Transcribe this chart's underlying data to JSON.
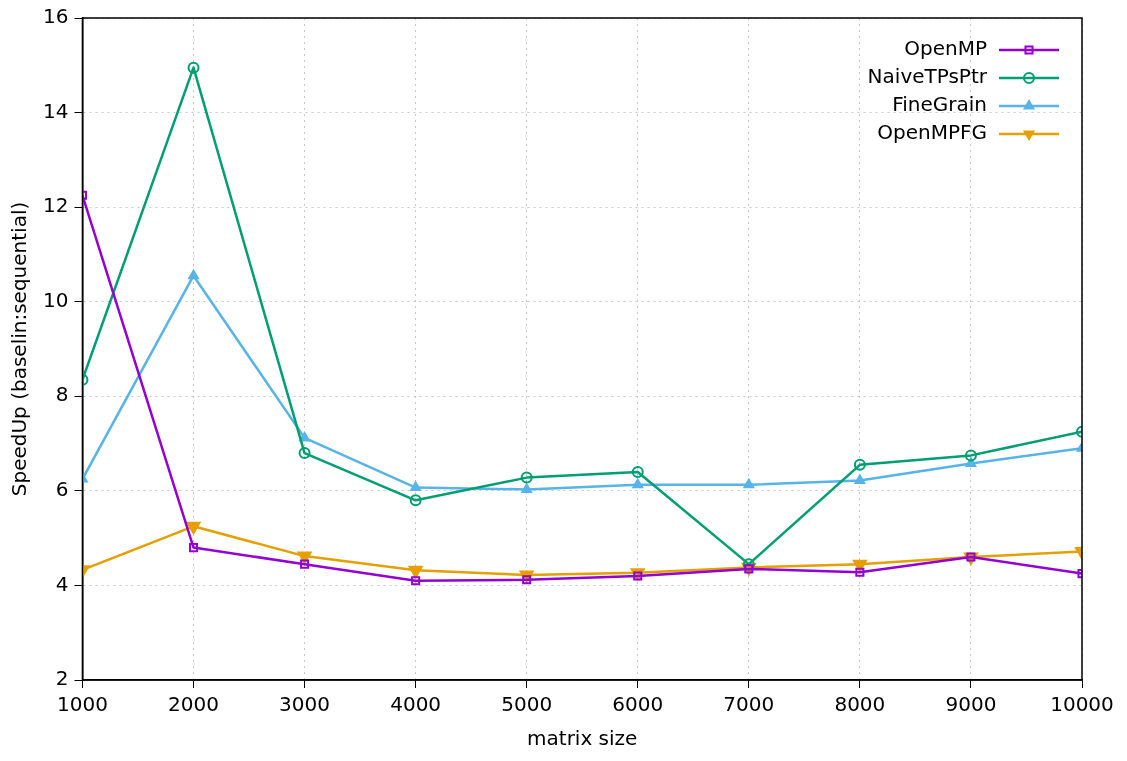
{
  "chart_data": {
    "type": "line",
    "xlabel": "matrix size",
    "ylabel": "SpeedUp (baselin:sequential)",
    "x": [
      1000,
      2000,
      3000,
      4000,
      5000,
      6000,
      7000,
      8000,
      9000,
      10000
    ],
    "series": [
      {
        "name": "OpenMP",
        "color": "#9400d3",
        "marker": "square",
        "values": [
          12.25,
          4.8,
          4.45,
          4.1,
          4.12,
          4.2,
          4.35,
          4.28,
          4.6,
          4.25
        ]
      },
      {
        "name": "NaiveTPsPtr",
        "color": "#009e73",
        "marker": "circle",
        "values": [
          8.35,
          14.95,
          6.8,
          5.8,
          6.28,
          6.4,
          4.45,
          6.55,
          6.75,
          7.25
        ]
      },
      {
        "name": "FineGrain",
        "color": "#56b4e9",
        "marker": "triangle",
        "values": [
          6.25,
          10.55,
          7.12,
          6.07,
          6.03,
          6.13,
          6.13,
          6.22,
          6.58,
          6.9
        ]
      },
      {
        "name": "OpenMPFG",
        "color": "#e69f00",
        "marker": "triangle-down",
        "values": [
          4.33,
          5.25,
          4.62,
          4.32,
          4.22,
          4.27,
          4.38,
          4.45,
          4.6,
          4.72
        ]
      }
    ],
    "xlim": [
      1000,
      10000
    ],
    "xticks": [
      1000,
      2000,
      3000,
      4000,
      5000,
      6000,
      7000,
      8000,
      9000,
      10000
    ],
    "ylim": [
      2,
      16
    ],
    "yticks": [
      2,
      4,
      6,
      8,
      10,
      12,
      14,
      16
    ],
    "grid": true,
    "legend": "top right",
    "line_style": "solid"
  }
}
